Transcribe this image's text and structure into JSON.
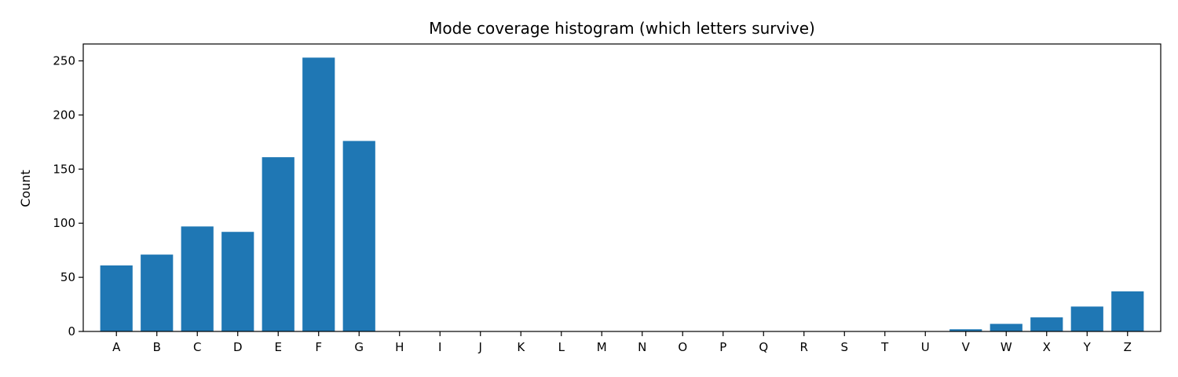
{
  "chart_data": {
    "type": "bar",
    "title": "Mode coverage histogram (which letters survive)",
    "xlabel": "",
    "ylabel": "Count",
    "categories": [
      "A",
      "B",
      "C",
      "D",
      "E",
      "F",
      "G",
      "H",
      "I",
      "J",
      "K",
      "L",
      "M",
      "N",
      "O",
      "P",
      "Q",
      "R",
      "S",
      "T",
      "U",
      "V",
      "W",
      "X",
      "Y",
      "Z"
    ],
    "values": [
      61,
      71,
      97,
      92,
      161,
      253,
      176,
      0,
      0,
      0,
      0,
      0,
      0,
      0,
      0,
      0,
      0,
      0,
      0,
      0,
      0,
      2,
      7,
      13,
      23,
      37
    ],
    "ylim": [
      0,
      265.6
    ],
    "yticks": [
      0,
      50,
      100,
      150,
      200,
      250
    ],
    "grid": false,
    "bar_color": "#1f77b4"
  }
}
